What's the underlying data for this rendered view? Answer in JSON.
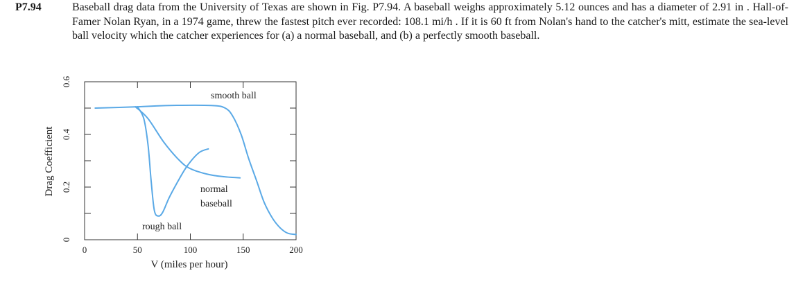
{
  "problem": {
    "number": "P7.94",
    "text": "Baseball drag data from the University of Texas are shown in Fig. P7.94. A baseball weighs approximately 5.12 ounces and has a diameter of 2.91 in . Hall-of-Famer Nolan Ryan, in a 1974 game, threw the fastest pitch ever recorded: 108.1 mi/h . If it is 60 ft from Nolan's hand to the catcher's mitt, estimate the sea-level ball velocity which the catcher experiences for (a) a normal baseball, and (b) a perfectly smooth baseball."
  },
  "chart_data": {
    "type": "line",
    "xlabel": "V (miles per hour)",
    "ylabel": "Drag Coefficient",
    "xlim": [
      0,
      200
    ],
    "ylim": [
      0,
      0.6
    ],
    "xticks": [
      "0",
      "50",
      "100",
      "150",
      "200"
    ],
    "yticks": [
      "0",
      "0.2",
      "0.4",
      "0.6"
    ],
    "line_color": "#5aa9e6",
    "annotations": [
      "smooth ball",
      "normal baseball",
      "rough ball"
    ],
    "series": [
      {
        "name": "smooth ball",
        "x": [
          10,
          50,
          80,
          120,
          133,
          140,
          148,
          155,
          163,
          170,
          178,
          185,
          192,
          200
        ],
        "y": [
          0.5,
          0.505,
          0.51,
          0.51,
          0.5,
          0.47,
          0.4,
          0.31,
          0.22,
          0.14,
          0.08,
          0.045,
          0.025,
          0.02
        ]
      },
      {
        "name": "normal baseball",
        "x": [
          48,
          60,
          75,
          90,
          100,
          115,
          130,
          147
        ],
        "y": [
          0.505,
          0.46,
          0.37,
          0.3,
          0.27,
          0.25,
          0.24,
          0.235
        ]
      },
      {
        "name": "rough ball",
        "x": [
          50,
          56,
          60,
          63,
          66,
          70,
          74,
          80,
          88,
          97,
          108,
          117
        ],
        "y": [
          0.505,
          0.46,
          0.36,
          0.22,
          0.11,
          0.09,
          0.105,
          0.16,
          0.22,
          0.28,
          0.33,
          0.345
        ]
      }
    ]
  }
}
